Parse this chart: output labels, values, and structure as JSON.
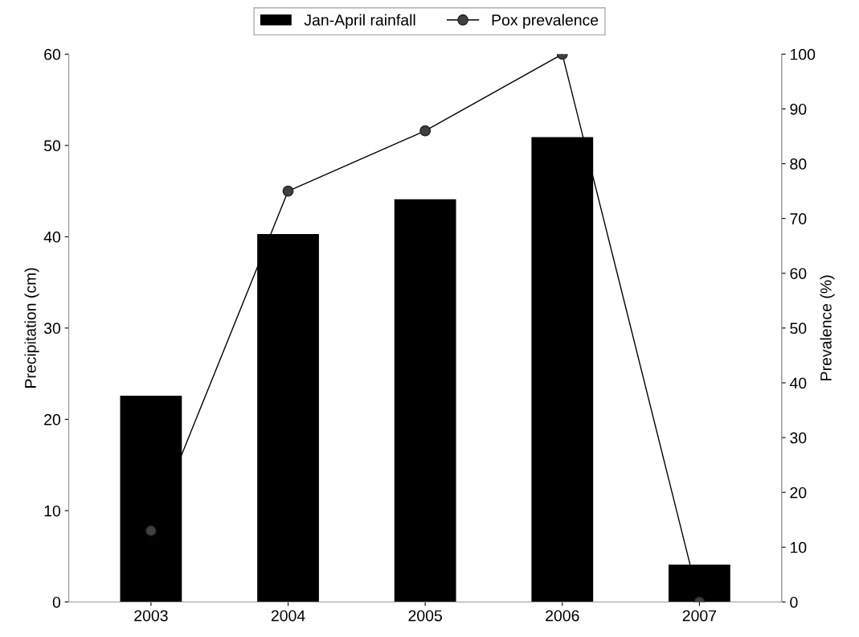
{
  "chart_data": {
    "type": "bar",
    "categories": [
      "2003",
      "2004",
      "2005",
      "2006",
      "2007"
    ],
    "series": [
      {
        "name": "Jan-April rainfall",
        "color": "#000000",
        "values": [
          22.6,
          40.3,
          44.1,
          50.9,
          4.1
        ]
      },
      {
        "name": "Pox prevalence",
        "type": "line",
        "axis": "y2",
        "color": "#404040",
        "marker": "circle",
        "values": [
          13,
          75,
          86,
          100,
          0
        ]
      }
    ],
    "ylabel": "Precipitation (cm)",
    "y2label": "Prevalence (%)",
    "ylim": [
      0,
      60
    ],
    "yticks": [
      0,
      10,
      20,
      30,
      40,
      50,
      60
    ],
    "y2lim": [
      0,
      100
    ],
    "y2ticks": [
      0,
      10,
      20,
      30,
      40,
      50,
      60,
      70,
      80,
      90,
      100
    ],
    "legend": "top",
    "grid": false
  }
}
